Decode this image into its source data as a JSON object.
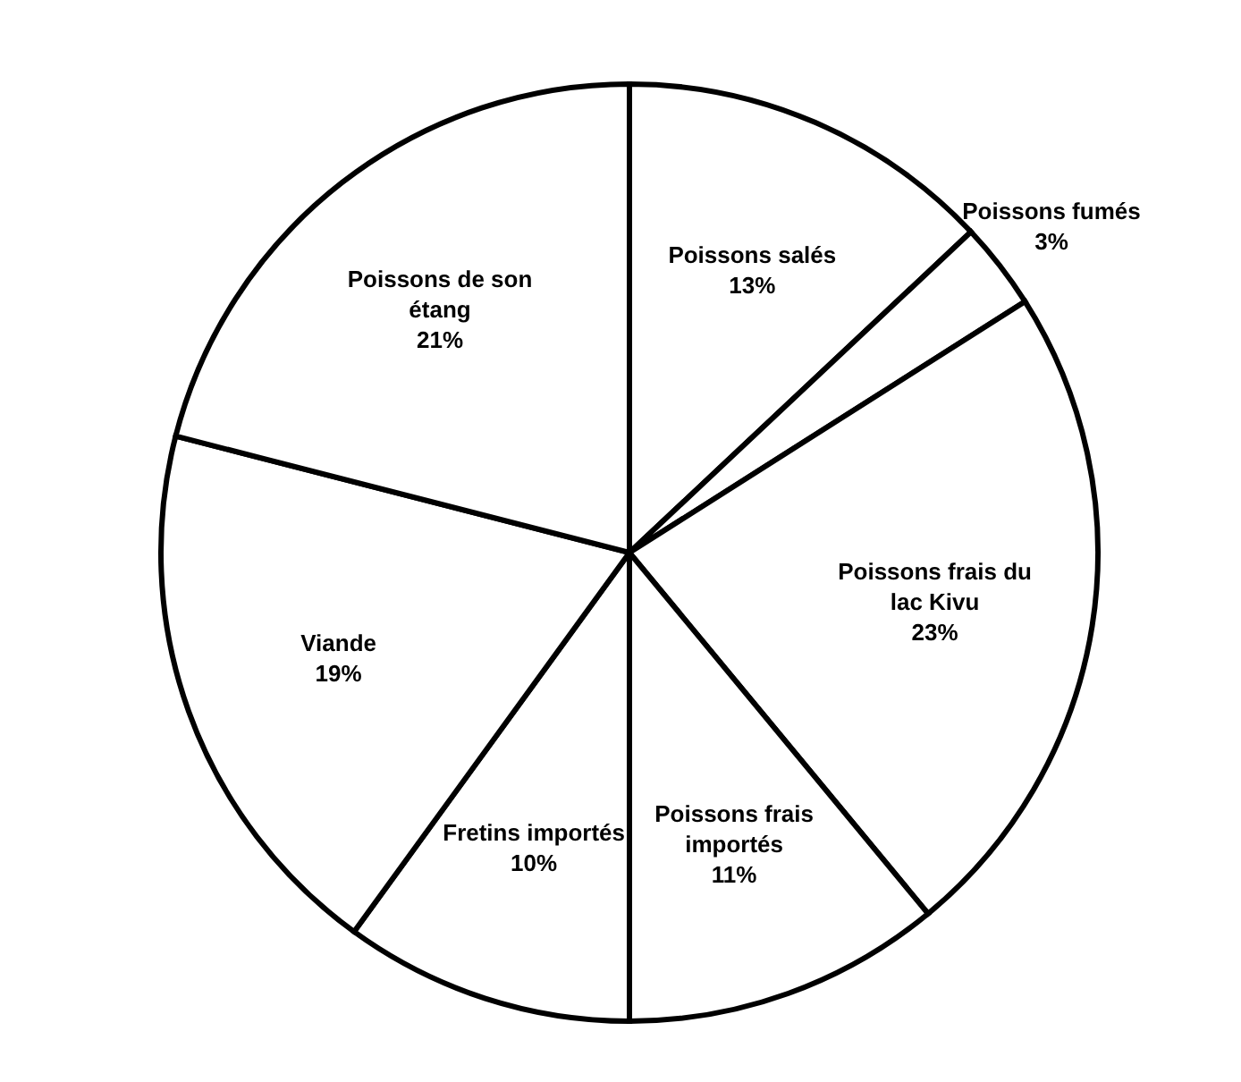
{
  "chart_data": {
    "type": "pie",
    "categories": [
      "Poissons salés",
      "Poissons fumés",
      "Poissons frais du lac Kivu",
      "Poissons frais importés",
      "Fretins importés",
      "Viande",
      "Poissons de son étang"
    ],
    "values": [
      13,
      3,
      23,
      11,
      10,
      19,
      21
    ],
    "value_labels": [
      "13%",
      "3%",
      "23%",
      "11%",
      "10%",
      "19%",
      "21%"
    ],
    "colors": [
      "#ffffff",
      "#ffffff",
      "#ffffff",
      "#ffffff",
      "#ffffff",
      "#ffffff",
      "#ffffff"
    ],
    "legend": false
  }
}
